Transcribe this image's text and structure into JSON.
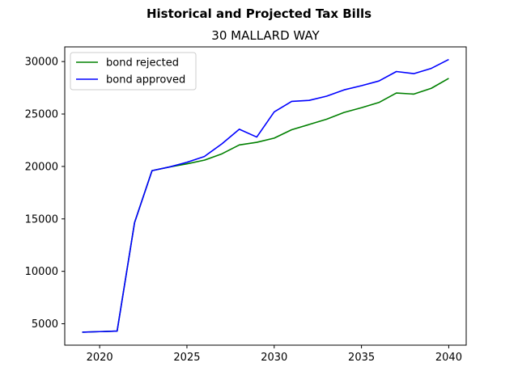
{
  "chart_data": {
    "type": "line",
    "suptitle": "Historical and Projected Tax Bills",
    "title": "30 MALLARD WAY",
    "xlabel": "",
    "ylabel": "",
    "xlim": [
      2018,
      2041
    ],
    "ylim": [
      2960,
      31400
    ],
    "xticks": [
      2020,
      2025,
      2030,
      2035,
      2040
    ],
    "yticks": [
      5000,
      10000,
      15000,
      20000,
      25000,
      30000
    ],
    "grid": false,
    "legend": "upper-left",
    "x": [
      2019,
      2020,
      2021,
      2022,
      2023,
      2024,
      2025,
      2026,
      2027,
      2028,
      2029,
      2030,
      2031,
      2032,
      2033,
      2034,
      2035,
      2036,
      2037,
      2038,
      2039,
      2040
    ],
    "series": [
      {
        "name": "bond rejected",
        "color": "#008000",
        "values": [
          4200,
          4250,
          4300,
          14650,
          19600,
          19950,
          20250,
          20600,
          21200,
          22050,
          22300,
          22700,
          23500,
          24000,
          24500,
          25150,
          25600,
          26100,
          27000,
          26900,
          27450,
          28400
        ]
      },
      {
        "name": "bond approved",
        "color": "#0000ff",
        "values": [
          4200,
          4250,
          4300,
          14650,
          19600,
          19950,
          20400,
          20950,
          22150,
          23550,
          22800,
          25200,
          26200,
          26300,
          26700,
          27300,
          27700,
          28150,
          29050,
          28850,
          29350,
          30200
        ]
      }
    ]
  }
}
